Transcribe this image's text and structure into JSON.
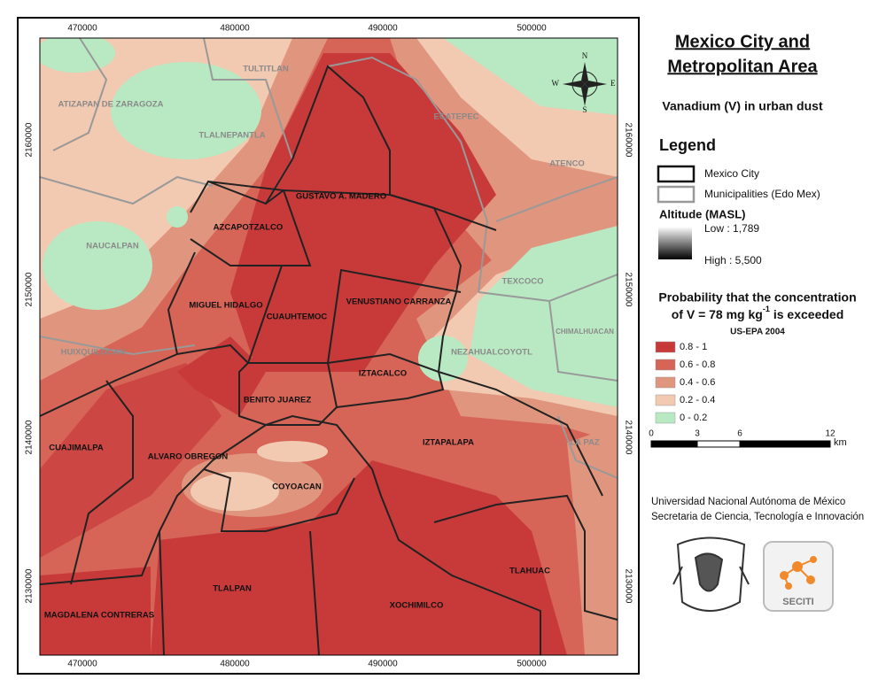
{
  "title": [
    "Mexico City and",
    "Metropolitan Area"
  ],
  "subtitle": "Vanadium (V) in urban dust",
  "legend": {
    "title": "Legend",
    "items": [
      "Mexico City",
      "Municipalities (Edo Mex)"
    ],
    "altitude": {
      "title": "Altitude (MASL)",
      "low": "Low : 1,789",
      "high": "High : 5,500"
    },
    "probability": {
      "line1": "Probability that the concentration",
      "line2_start": "of  V = 78 mg kg",
      "line2_sup": "-1",
      "line2_end": "is exceeded",
      "source": "US-EPA 2004",
      "classes": [
        {
          "label": "0.8 - 1",
          "color": "#c8393a"
        },
        {
          "label": "0.6 - 0.8",
          "color": "#d66457"
        },
        {
          "label": "0.4 - 0.6",
          "color": "#e0957e"
        },
        {
          "label": "0.2 - 0.4",
          "color": "#f2c9b1"
        },
        {
          "label": "0 - 0.2",
          "color": "#b9e9c3"
        }
      ]
    }
  },
  "scale": {
    "ticks": [
      "0",
      "3",
      "6",
      "12"
    ],
    "unit": "km"
  },
  "credits": [
    "Universidad Nacional Autónoma de México",
    "Secretaria de Ciencia, Tecnología e Innovación"
  ],
  "logo": "SECITI",
  "compass": {
    "n": "N",
    "e": "E",
    "s": "S",
    "w": "W"
  },
  "axes": {
    "x": [
      "470000",
      "480000",
      "490000",
      "500000"
    ],
    "y": [
      "2160000",
      "2150000",
      "2140000",
      "2130000"
    ]
  },
  "places": [
    "TULTITLAN",
    "ATIZAPAN DE ZARAGOZA",
    "ECATEPEC",
    "TLALNEPANTLA",
    "ATENCO",
    "GUSTAVO A. MADERO",
    "AZCAPOTZALCO",
    "NAUCALPAN",
    "TEXCOCO",
    "MIGUEL HIDALGO",
    "VENUSTIANO CARRANZA",
    "CUAUHTEMOC",
    "CHIMALHUACAN",
    "HUIXQUILUCAN",
    "NEZAHUALCOYOTL",
    "IZTACALCO",
    "BENITO JUAREZ",
    "CUAJIMALPA",
    "IZTAPALAPA",
    "LA PAZ",
    "ALVARO OBREGON",
    "COYOACAN",
    "TLAHUAC",
    "TLALPAN",
    "XOCHIMILCO",
    "MAGDALENA CONTRERAS"
  ]
}
